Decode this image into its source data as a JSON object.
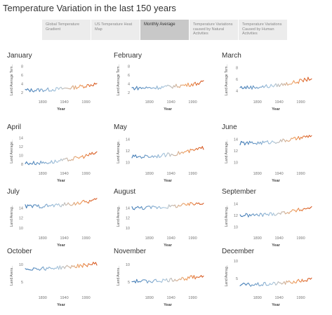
{
  "page": {
    "title": "Temperature Variation in the last 150 years"
  },
  "tabs": [
    {
      "label": "Global Temperature Gradient",
      "active": false
    },
    {
      "label": "US Temperature Heat Map",
      "active": false
    },
    {
      "label": "Monthly Average",
      "active": true
    },
    {
      "label": "Temperature Variations caused by Natural Activities",
      "active": false
    },
    {
      "label": "Temperature Variations Caused by Human Activities",
      "active": false
    }
  ],
  "colors": {
    "early": "#3e79b5",
    "mid": "#a8c6dd",
    "late": "#f0a060",
    "end": "#d4521c"
  },
  "chart_data": [
    {
      "type": "line",
      "title": "January",
      "xlabel": "Year",
      "ylabel": "Land Average Tem..",
      "x_ticks": [
        "1890",
        "1940",
        "1990"
      ],
      "y_ticks": [
        2,
        4,
        6,
        8
      ],
      "ylim": [
        1,
        9
      ],
      "x": [
        1850,
        2015
      ],
      "y_start": 2.5,
      "y_end": 4.0
    },
    {
      "type": "line",
      "title": "February",
      "xlabel": "Year",
      "ylabel": "Land Average Tem..",
      "x_ticks": [
        "1890",
        "1940",
        "1990"
      ],
      "y_ticks": [
        2,
        4,
        6,
        8
      ],
      "ylim": [
        1,
        9
      ],
      "x": [
        1850,
        2015
      ],
      "y_start": 3.0,
      "y_end": 4.3
    },
    {
      "type": "line",
      "title": "March",
      "xlabel": "Year",
      "ylabel": "Land Average Tem..",
      "x_ticks": [
        "1890",
        "1940",
        "1990"
      ],
      "y_ticks": [
        4,
        6,
        8
      ],
      "ylim": [
        3,
        9
      ],
      "x": [
        1850,
        2015
      ],
      "y_start": 4.6,
      "y_end": 6.2
    },
    {
      "type": "line",
      "title": "April",
      "xlabel": "Year",
      "ylabel": "Land Average..",
      "x_ticks": [
        "1890",
        "1940",
        "1990"
      ],
      "y_ticks": [
        8,
        10,
        12,
        14
      ],
      "ylim": [
        7,
        15
      ],
      "x": [
        1850,
        2015
      ],
      "y_start": 8.2,
      "y_end": 10.6
    },
    {
      "type": "line",
      "title": "May",
      "xlabel": "Year",
      "ylabel": "Land Average..",
      "x_ticks": [
        "1890",
        "1940",
        "1990"
      ],
      "y_ticks": [
        10,
        12,
        14
      ],
      "ylim": [
        9,
        15
      ],
      "x": [
        1850,
        2015
      ],
      "y_start": 11.0,
      "y_end": 12.5
    },
    {
      "type": "line",
      "title": "June",
      "xlabel": "Year",
      "ylabel": "Land Average..",
      "x_ticks": [
        "1890",
        "1940",
        "1990"
      ],
      "y_ticks": [
        10,
        12,
        14
      ],
      "ylim": [
        9,
        15
      ],
      "x": [
        1850,
        2015
      ],
      "y_start": 13.3,
      "y_end": 14.6
    },
    {
      "type": "line",
      "title": "July",
      "xlabel": "Year",
      "ylabel": "Land Averag..",
      "x_ticks": [
        "1890",
        "1940",
        "1990"
      ],
      "y_ticks": [
        10,
        12,
        14
      ],
      "ylim": [
        9,
        16
      ],
      "x": [
        1850,
        2015
      ],
      "y_start": 14.3,
      "y_end": 15.6
    },
    {
      "type": "line",
      "title": "August",
      "xlabel": "Year",
      "ylabel": "Land Averag..",
      "x_ticks": [
        "1890",
        "1940",
        "1990"
      ],
      "y_ticks": [
        10,
        12,
        14
      ],
      "ylim": [
        9,
        16
      ],
      "x": [
        1850,
        2015
      ],
      "y_start": 14.0,
      "y_end": 15.1
    },
    {
      "type": "line",
      "title": "September",
      "xlabel": "Year",
      "ylabel": "Land Averag..",
      "x_ticks": [
        "1890",
        "1940",
        "1990"
      ],
      "y_ticks": [
        10,
        12,
        14
      ],
      "ylim": [
        9,
        15
      ],
      "x": [
        1850,
        2015
      ],
      "y_start": 12.0,
      "y_end": 13.4
    },
    {
      "type": "line",
      "title": "October",
      "xlabel": "Year",
      "ylabel": "Land Avera..",
      "x_ticks": [
        "1890",
        "1940",
        "1990"
      ],
      "y_ticks": [
        5,
        10
      ],
      "ylim": [
        2,
        12
      ],
      "x": [
        1850,
        2015
      ],
      "y_start": 8.8,
      "y_end": 10.3
    },
    {
      "type": "line",
      "title": "November",
      "xlabel": "Year",
      "ylabel": "Land Avera..",
      "x_ticks": [
        "1890",
        "1940",
        "1990"
      ],
      "y_ticks": [
        5,
        10
      ],
      "ylim": [
        2,
        12
      ],
      "x": [
        1850,
        2015
      ],
      "y_start": 5.2,
      "y_end": 6.8
    },
    {
      "type": "line",
      "title": "December",
      "xlabel": "Year",
      "ylabel": "Land Averag..",
      "x_ticks": [
        "1890",
        "1940",
        "1990"
      ],
      "y_ticks": [
        5,
        10
      ],
      "ylim": [
        1,
        11
      ],
      "x": [
        1850,
        2015
      ],
      "y_start": 3.2,
      "y_end": 4.8
    }
  ]
}
